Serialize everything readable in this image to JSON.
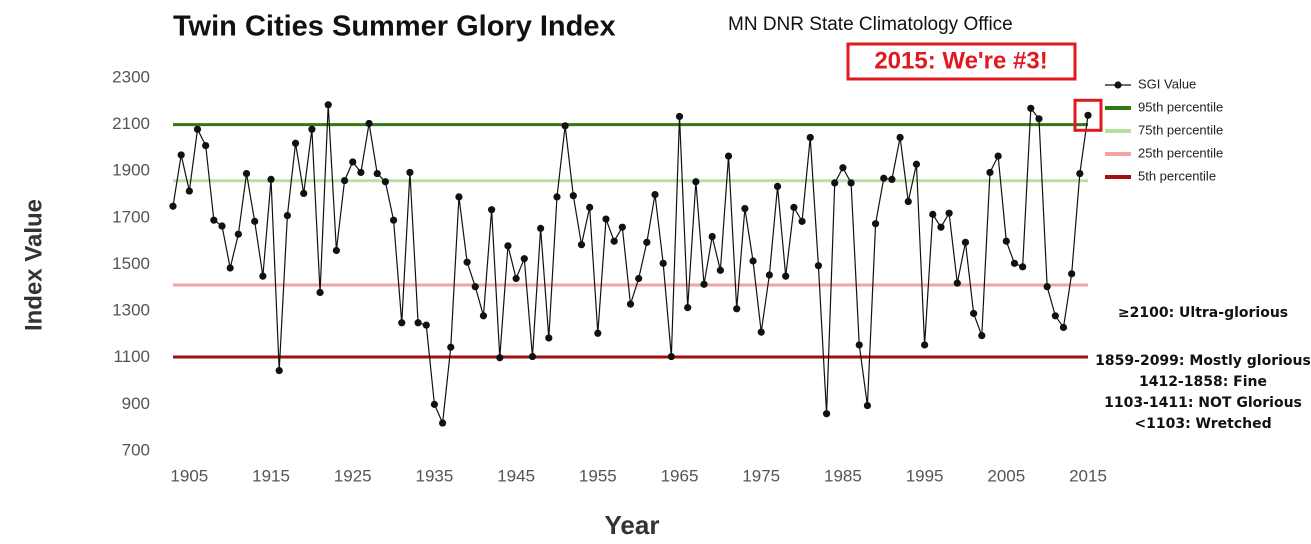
{
  "chart_data": {
    "type": "line",
    "title": "Twin Cities Summer Glory Index",
    "subtitle": "MN DNR State Climatology Office",
    "annotation": "2015: We're #3!",
    "x_label": "Year",
    "y_label": "Index Value",
    "x": [
      1903,
      1904,
      1905,
      1906,
      1907,
      1908,
      1909,
      1910,
      1911,
      1912,
      1913,
      1914,
      1915,
      1916,
      1917,
      1918,
      1919,
      1920,
      1921,
      1922,
      1923,
      1924,
      1925,
      1926,
      1927,
      1928,
      1929,
      1930,
      1931,
      1932,
      1933,
      1934,
      1935,
      1936,
      1937,
      1938,
      1939,
      1940,
      1941,
      1942,
      1943,
      1944,
      1945,
      1946,
      1947,
      1948,
      1949,
      1950,
      1951,
      1952,
      1953,
      1954,
      1955,
      1956,
      1957,
      1958,
      1959,
      1960,
      1961,
      1962,
      1963,
      1964,
      1965,
      1966,
      1967,
      1968,
      1969,
      1970,
      1971,
      1972,
      1973,
      1974,
      1975,
      1976,
      1977,
      1978,
      1979,
      1980,
      1981,
      1982,
      1983,
      1984,
      1985,
      1986,
      1987,
      1988,
      1989,
      1990,
      1991,
      1992,
      1993,
      1994,
      1995,
      1996,
      1997,
      1998,
      1999,
      2000,
      2001,
      2002,
      2003,
      2004,
      2005,
      2006,
      2007,
      2008,
      2009,
      2010,
      2011,
      2012,
      2013,
      2014,
      2015
    ],
    "series": [
      {
        "name": "SGI Value",
        "color": "#111111",
        "values": [
          1750,
          1970,
          1815,
          2080,
          2010,
          1690,
          1665,
          1485,
          1630,
          1890,
          1685,
          1450,
          1865,
          1045,
          1710,
          2020,
          1805,
          2080,
          1380,
          2185,
          1560,
          1860,
          1940,
          1895,
          2105,
          1890,
          1855,
          1690,
          1250,
          1895,
          1250,
          1240,
          900,
          820,
          1145,
          1790,
          1510,
          1405,
          1280,
          1735,
          1100,
          1580,
          1440,
          1525,
          1105,
          1655,
          1185,
          1790,
          2095,
          1795,
          1585,
          1745,
          1205,
          1695,
          1600,
          1660,
          1330,
          1440,
          1595,
          1800,
          1505,
          1105,
          2135,
          1315,
          1855,
          1415,
          1620,
          1475,
          1965,
          1310,
          1740,
          1515,
          1210,
          1455,
          1835,
          1450,
          1745,
          1685,
          2045,
          1495,
          860,
          1850,
          1915,
          1850,
          1155,
          895,
          1675,
          1870,
          1865,
          2045,
          1770,
          1930,
          1155,
          1715,
          1660,
          1720,
          1420,
          1595,
          1290,
          1195,
          1895,
          1965,
          1600,
          1505,
          1490,
          2170,
          2125,
          1405,
          1280,
          1230,
          1460,
          1890,
          2140
        ]
      }
    ],
    "percentiles": [
      {
        "name": "95th percentile",
        "value": 2100,
        "color": "#2f7a12"
      },
      {
        "name": "75th percentile",
        "value": 1859,
        "color": "#b9e0a3"
      },
      {
        "name": "25th percentile",
        "value": 1412,
        "color": "#f2a3a3"
      },
      {
        "name": "5th percentile",
        "value": 1103,
        "color": "#a20f0f"
      }
    ],
    "notes": [
      "≥2100: Ultra-glorious",
      "1859-2099: Mostly glorious",
      "1412-1858: Fine",
      "1103-1411: NOT Glorious",
      "<1103: Wretched"
    ],
    "xlim": [
      1903,
      2015
    ],
    "xticks": [
      1905,
      1915,
      1925,
      1935,
      1945,
      1955,
      1965,
      1975,
      1985,
      1995,
      2005,
      2015
    ],
    "ylim": [
      700,
      2300
    ],
    "yticks": [
      700,
      900,
      1100,
      1300,
      1500,
      1700,
      1900,
      2100,
      2300
    ],
    "annotation_color": "#e0191f"
  }
}
